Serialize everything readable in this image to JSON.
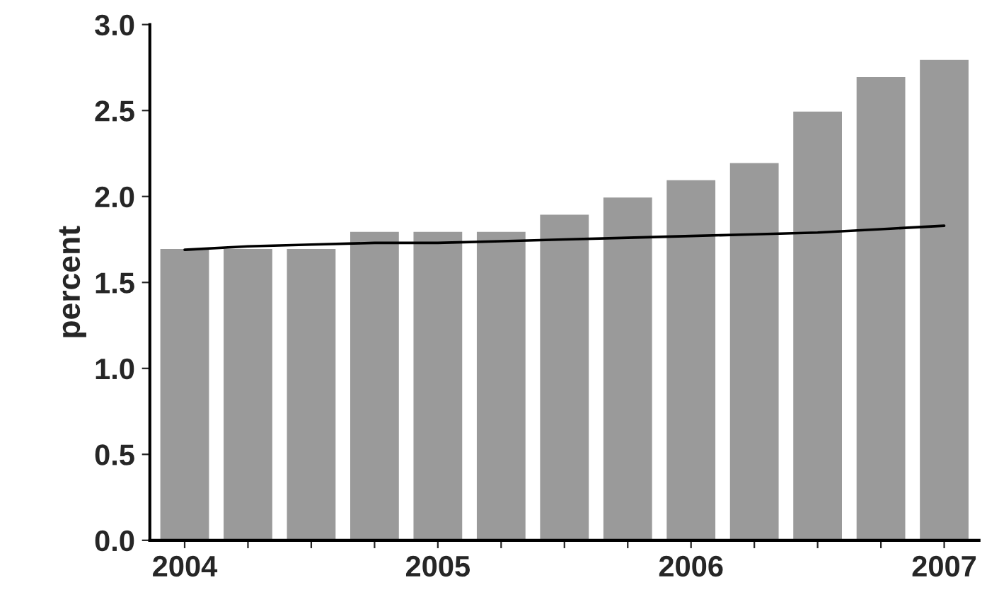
{
  "chart_data": {
    "type": "bar",
    "ylabel": "percent",
    "categories": [
      "2004",
      null,
      null,
      null,
      "2005",
      null,
      null,
      null,
      "2006",
      null,
      null,
      null,
      "2007"
    ],
    "series": [
      {
        "color": "#9a9a9a",
        "values": [
          1.7,
          1.7,
          1.7,
          1.8,
          1.8,
          1.8,
          1.9,
          2.0,
          2.1,
          2.2,
          2.5,
          2.7,
          2.8
        ]
      },
      {
        "type": "line",
        "color": "#000000",
        "values": [
          1.69,
          1.71,
          1.72,
          1.73,
          1.73,
          1.74,
          1.75,
          1.76,
          1.77,
          1.78,
          1.79,
          1.81,
          1.83
        ]
      }
    ],
    "ylim": [
      0,
      3.0
    ],
    "yticks": [
      {
        "value": 0,
        "label": "0.0"
      },
      {
        "value": 0.5,
        "label": "0.5"
      },
      {
        "value": 1.0,
        "label": "1.0"
      },
      {
        "value": 1.5,
        "label": "1.5"
      },
      {
        "value": 2.0,
        "label": "2.0"
      },
      {
        "value": 2.5,
        "label": "2.5"
      },
      {
        "value": 3.0,
        "label": "3.0"
      }
    ],
    "grid": false
  }
}
